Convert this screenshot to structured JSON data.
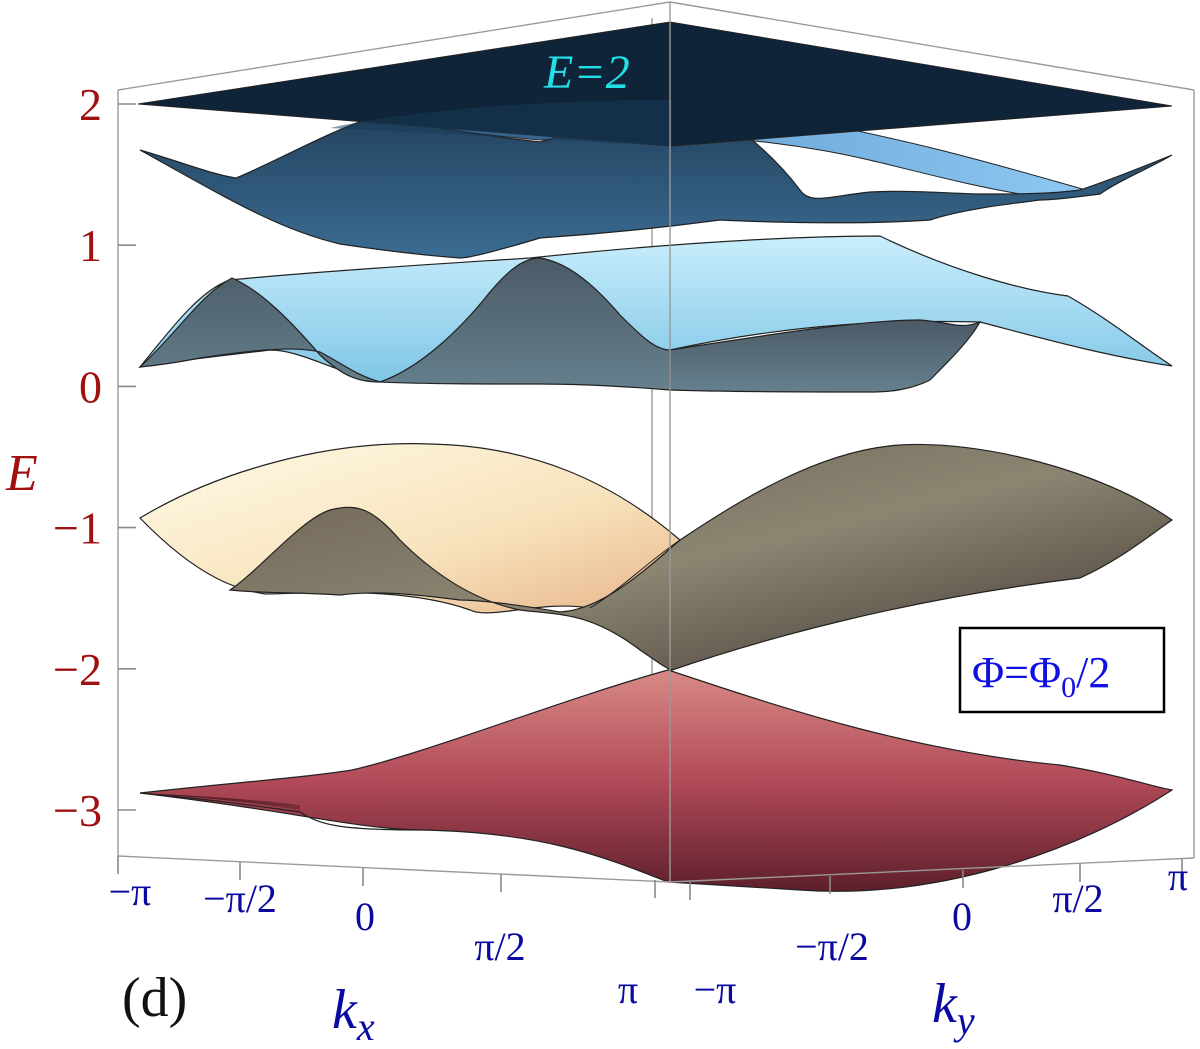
{
  "chart_data": {
    "type": "surface-3d",
    "panel_label": "(d)",
    "flux_label": "Φ=Φ",
    "flux_sub": "0",
    "flux_tail": "/2",
    "plane_label": "E=2",
    "zlabel": "E",
    "xlabel": "k",
    "xlabel_sub": "x",
    "ylabel": "k",
    "ylabel_sub": "y",
    "zlim": [
      -3.3,
      2.4
    ],
    "z_ticks": [
      {
        "label": "2",
        "value": 2
      },
      {
        "label": "1",
        "value": 1
      },
      {
        "label": "0",
        "value": 0
      },
      {
        "label": "−1",
        "value": -1
      },
      {
        "label": "−2",
        "value": -2
      },
      {
        "label": "−3",
        "value": -3
      }
    ],
    "kx_ticks": [
      "−π",
      "−π/2",
      "0",
      "π/2",
      "π"
    ],
    "ky_ticks": [
      "−π",
      "−π/2",
      "0",
      "π/2",
      "π"
    ],
    "bands": [
      {
        "name": "band-1",
        "energy_range": [
          -3.0,
          -2.0
        ],
        "color": "#b24a58"
      },
      {
        "name": "band-2",
        "energy_range": [
          -2.0,
          -0.4
        ],
        "color": "#8a8372"
      },
      {
        "name": "band-3",
        "energy_range": [
          0.0,
          1.0
        ],
        "color": "#a9dcf1"
      },
      {
        "name": "band-4",
        "energy_range": [
          1.0,
          2.0
        ],
        "color": "#3a6e95"
      },
      {
        "name": "plane",
        "energy": 2,
        "color": "#0f2438"
      }
    ]
  }
}
